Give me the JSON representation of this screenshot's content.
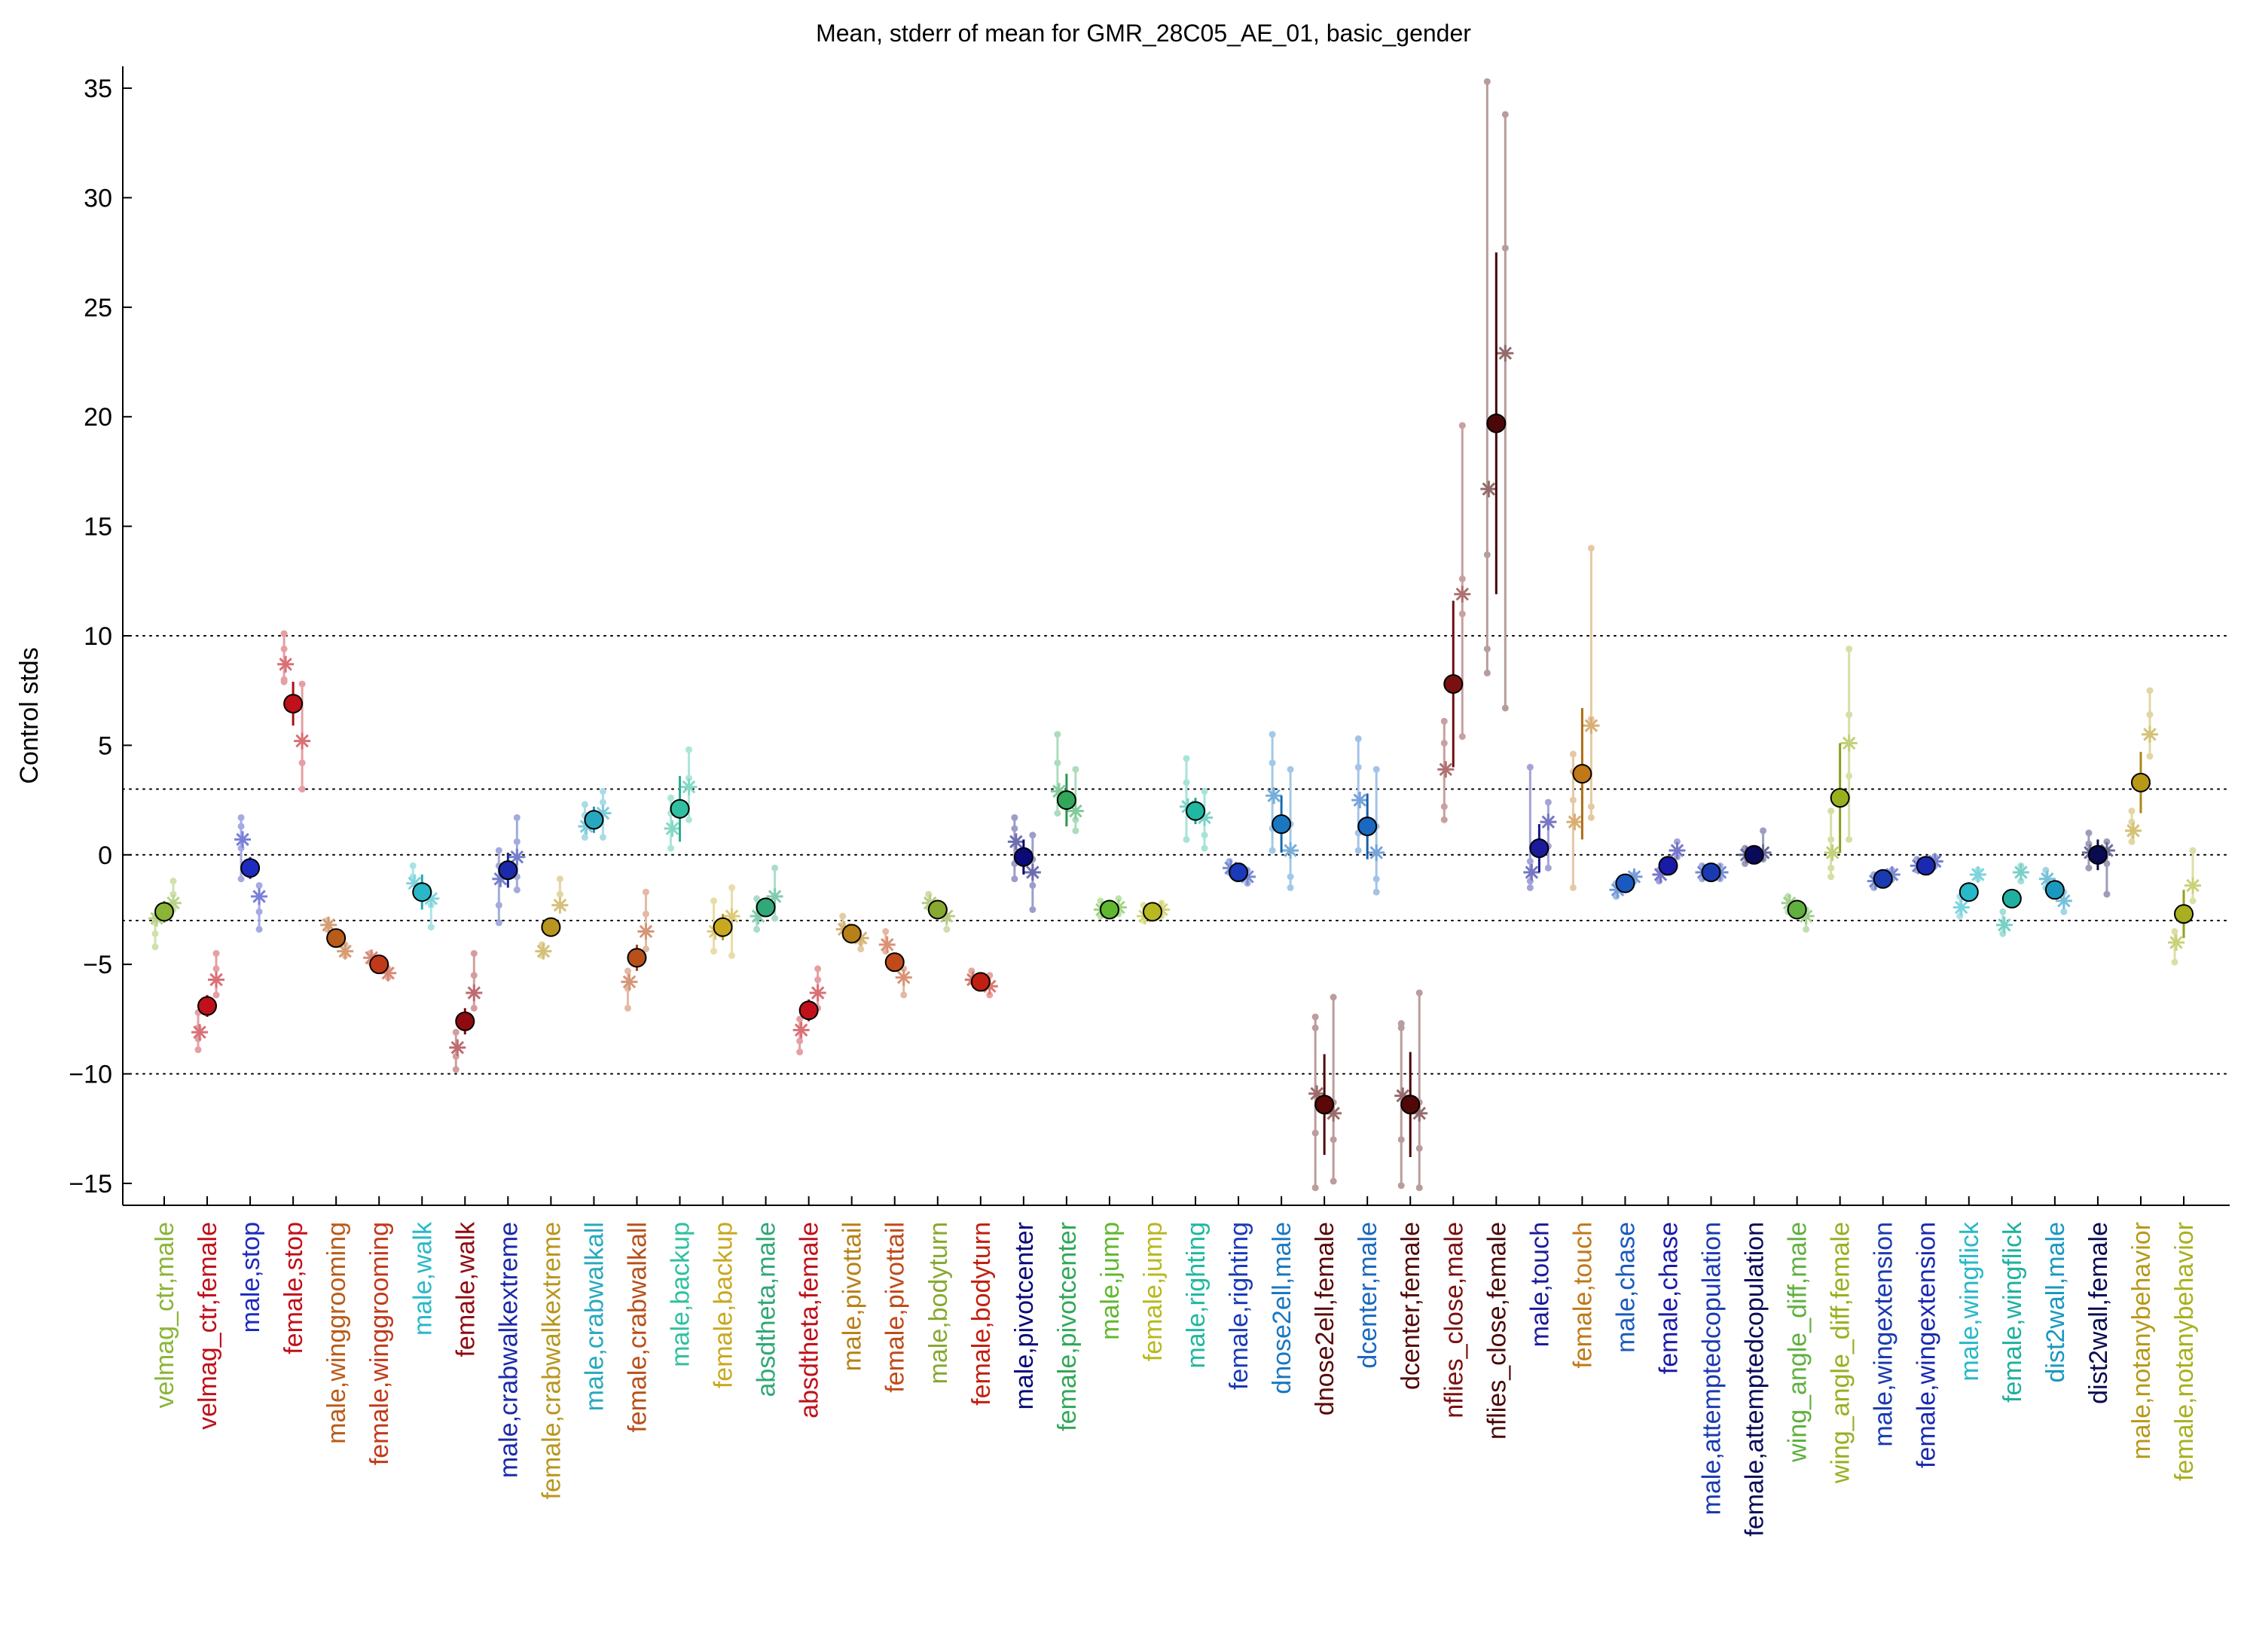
{
  "chart_data": {
    "type": "scatter",
    "title": "Mean, stderr of mean for GMR_28C05_AE_01, basic_gender",
    "ylabel": "Control stds",
    "xlabel": "",
    "ylim": [
      -16,
      36
    ],
    "yticks": [
      -15,
      -10,
      -5,
      0,
      5,
      10,
      15,
      20,
      25,
      30,
      35
    ],
    "reference_lines": [
      -10,
      -3,
      0,
      3,
      10
    ],
    "grid": false,
    "categories": [
      {
        "label": "velmag_ctr,male",
        "color": "#8ab537",
        "mean": -2.6,
        "stderr": 0.5,
        "stars": [
          -2.9,
          -2.2
        ],
        "dots": [
          -4.2,
          -3.6,
          -3.1,
          -2.8,
          -2.5,
          -1.8,
          -1.2
        ]
      },
      {
        "label": "velmag_ctr,female",
        "color": "#c0101a",
        "mean": -6.9,
        "stderr": 0.5,
        "stars": [
          -8.1,
          -5.7
        ],
        "dots": [
          -8.9,
          -8.4,
          -7.9,
          -7.2,
          -6.4,
          -5.2,
          -4.5
        ]
      },
      {
        "label": "male,stop",
        "color": "#1d2bbf",
        "mean": -0.6,
        "stderr": 0.5,
        "stars": [
          0.7,
          -1.9
        ],
        "dots": [
          1.7,
          1.3,
          0.3,
          -1.1,
          -1.4,
          -2.6,
          -3.4
        ]
      },
      {
        "label": "female,stop",
        "color": "#c0101a",
        "mean": 6.9,
        "stderr": 1.0,
        "stars": [
          8.7,
          5.2
        ],
        "dots": [
          10.1,
          9.4,
          8.0,
          7.9,
          7.8,
          4.2,
          3.0
        ]
      },
      {
        "label": "male,winggrooming",
        "color": "#b85c1a",
        "mean": -3.8,
        "stderr": 0.3,
        "stars": [
          -3.2,
          -4.4
        ],
        "dots": [
          -3.0,
          -3.4,
          -4.1,
          -4.6
        ]
      },
      {
        "label": "female,winggrooming",
        "color": "#c03a1a",
        "mean": -5.0,
        "stderr": 0.3,
        "stars": [
          -4.7,
          -5.4
        ],
        "dots": [
          -4.5,
          -4.9,
          -5.2,
          -5.6
        ]
      },
      {
        "label": "male,walk",
        "color": "#28b8c8",
        "mean": -1.7,
        "stderr": 0.8,
        "stars": [
          -1.3,
          -2.0
        ],
        "dots": [
          -0.5,
          -1.0,
          -2.3,
          -3.3
        ]
      },
      {
        "label": "female,walk",
        "color": "#900a10",
        "mean": -7.6,
        "stderr": 0.6,
        "stars": [
          -8.8,
          -6.3
        ],
        "dots": [
          -9.8,
          -9.2,
          -8.1,
          -7.0,
          -5.5,
          -4.5
        ]
      },
      {
        "label": "male,crabwalkextreme",
        "color": "#1a2aa8",
        "mean": -0.7,
        "stderr": 0.8,
        "stars": [
          -1.1,
          -0.1
        ],
        "dots": [
          0.2,
          -0.5,
          -2.3,
          -3.1,
          1.7,
          0.6,
          -1.0,
          -1.6
        ]
      },
      {
        "label": "female,crabwalkextreme",
        "color": "#b8961e",
        "mean": -3.3,
        "stderr": 0.3,
        "stars": [
          -4.4,
          -2.3
        ],
        "dots": [
          -4.6,
          -4.1,
          -1.8,
          -1.1
        ]
      },
      {
        "label": "male,crabwalkall",
        "color": "#28a8c0",
        "mean": 1.6,
        "stderr": 0.6,
        "stars": [
          1.3,
          1.9
        ],
        "dots": [
          2.3,
          1.8,
          0.8,
          2.9,
          2.4,
          0.8
        ]
      },
      {
        "label": "female,crabwalkall",
        "color": "#b8501a",
        "mean": -4.7,
        "stderr": 0.6,
        "stars": [
          -5.8,
          -3.5
        ],
        "dots": [
          -7.0,
          -6.1,
          -5.3,
          -4.3,
          -2.7,
          -1.7
        ]
      },
      {
        "label": "male,backup",
        "color": "#30c0a0",
        "mean": 2.1,
        "stderr": 1.5,
        "stars": [
          1.2,
          3.1
        ],
        "dots": [
          2.6,
          1.9,
          0.3,
          4.8,
          3.5,
          1.6
        ]
      },
      {
        "label": "female,backup",
        "color": "#c8a820",
        "mean": -3.3,
        "stderr": 0.6,
        "stars": [
          -3.5,
          -2.8
        ],
        "dots": [
          -2.1,
          -4.4,
          -1.5,
          -4.6
        ]
      },
      {
        "label": "absdtheta,male",
        "color": "#30a878",
        "mean": -2.4,
        "stderr": 0.4,
        "stars": [
          -2.8,
          -1.9
        ],
        "dots": [
          -2.0,
          -3.4,
          -0.6,
          -2.9
        ]
      },
      {
        "label": "absdtheta,female",
        "color": "#c0101a",
        "mean": -7.1,
        "stderr": 0.5,
        "stars": [
          -8.0,
          -6.3
        ],
        "dots": [
          -9.0,
          -8.5,
          -7.5,
          -7.0,
          -5.7,
          -5.2
        ]
      },
      {
        "label": "male,pivottail",
        "color": "#b88018",
        "mean": -3.6,
        "stderr": 0.3,
        "stars": [
          -3.4,
          -3.8
        ],
        "dots": [
          -2.8,
          -3.2,
          -4.0,
          -4.3
        ]
      },
      {
        "label": "female,pivottail",
        "color": "#c04a1a",
        "mean": -4.9,
        "stderr": 0.4,
        "stars": [
          -4.1,
          -5.6
        ],
        "dots": [
          -3.5,
          -4.4,
          -5.2,
          -6.4
        ]
      },
      {
        "label": "male,bodyturn",
        "color": "#88a830",
        "mean": -2.5,
        "stderr": 0.3,
        "stars": [
          -2.2,
          -2.8
        ],
        "dots": [
          -1.8,
          -2.4,
          -2.9,
          -3.4
        ]
      },
      {
        "label": "female,bodyturn",
        "color": "#c02010",
        "mean": -5.8,
        "stderr": 0.2,
        "stars": [
          -5.7,
          -6.0
        ],
        "dots": [
          -5.3,
          -5.8,
          -5.5,
          -6.4
        ]
      },
      {
        "label": "male,pivotcenter",
        "color": "#0a0a7a",
        "mean": -0.1,
        "stderr": 0.8,
        "stars": [
          0.6,
          -0.8
        ],
        "dots": [
          1.7,
          1.2,
          -0.4,
          -1.1,
          0.9,
          -0.2,
          -1.4,
          -2.5
        ]
      },
      {
        "label": "female,pivotcenter",
        "color": "#30a858",
        "mean": 2.5,
        "stderr": 1.2,
        "stars": [
          2.9,
          2.0
        ],
        "dots": [
          5.5,
          4.2,
          1.9,
          1.6,
          3.9,
          1.1
        ]
      },
      {
        "label": "male,jump",
        "color": "#60b830",
        "mean": -2.5,
        "stderr": 0.2,
        "stars": [
          -2.5,
          -2.4
        ],
        "dots": [
          -2.1,
          -2.8,
          -2.0,
          -2.7
        ]
      },
      {
        "label": "female,jump",
        "color": "#b8b820",
        "mean": -2.6,
        "stderr": 0.2,
        "stars": [
          -2.8,
          -2.5
        ],
        "dots": [
          -2.3,
          -3.0,
          -2.2,
          -2.8
        ]
      },
      {
        "label": "male,righting",
        "color": "#20b8a0",
        "mean": 2.0,
        "stderr": 0.6,
        "stars": [
          2.2,
          1.7
        ],
        "dots": [
          4.4,
          3.3,
          0.7,
          0.3,
          2.9,
          0.9
        ]
      },
      {
        "label": "female,righting",
        "color": "#1a3ab8",
        "mean": -0.8,
        "stderr": 0.2,
        "stars": [
          -0.6,
          -1.0
        ],
        "dots": [
          -0.3,
          -0.8,
          -0.7,
          -1.3
        ]
      },
      {
        "label": "dnose2ell,male",
        "color": "#1a78c0",
        "mean": 1.4,
        "stderr": 1.3,
        "stars": [
          2.7,
          0.2
        ],
        "dots": [
          5.5,
          4.2,
          1.2,
          0.2,
          3.9,
          1.4,
          -1.0,
          -1.5
        ]
      },
      {
        "label": "dnose2ell,female",
        "color": "#5a0808",
        "mean": -11.4,
        "stderr": 2.3,
        "stars": [
          -10.9,
          -11.8
        ],
        "dots": [
          -7.4,
          -7.9,
          -12.7,
          -15.2,
          -6.5,
          -11.3,
          -13.0,
          -14.9
        ]
      },
      {
        "label": "dcenter,male",
        "color": "#1a68c0",
        "mean": 1.3,
        "stderr": 1.5,
        "stars": [
          2.5,
          0.1
        ],
        "dots": [
          5.3,
          4.0,
          1.0,
          0.2,
          3.9,
          1.3,
          -1.1,
          -1.7
        ]
      },
      {
        "label": "dcenter,female",
        "color": "#500808",
        "mean": -11.4,
        "stderr": 2.4,
        "stars": [
          -11.0,
          -11.8
        ],
        "dots": [
          -7.7,
          -7.9,
          -13.0,
          -15.1,
          -6.3,
          -11.3,
          -13.4,
          -15.2
        ]
      },
      {
        "label": "nflies_close,male",
        "color": "#7a1010",
        "mean": 7.8,
        "stderr": 3.8,
        "stars": [
          3.9,
          11.9
        ],
        "dots": [
          6.1,
          5.1,
          2.2,
          1.6,
          19.6,
          12.6,
          11.0,
          5.4
        ]
      },
      {
        "label": "nflies_close,female",
        "color": "#4a0808",
        "mean": 19.7,
        "stderr": 7.8,
        "stars": [
          16.7,
          22.9
        ],
        "dots": [
          35.3,
          13.7,
          9.4,
          8.3,
          33.8,
          27.7,
          6.7
        ]
      },
      {
        "label": "male,touch",
        "color": "#1a1a9a",
        "mean": 0.3,
        "stderr": 1.1,
        "stars": [
          -0.8,
          1.5
        ],
        "dots": [
          -0.3,
          -1.2,
          -1.5,
          4.0,
          2.4,
          0.4,
          -0.6
        ]
      },
      {
        "label": "female,touch",
        "color": "#c07818",
        "mean": 3.7,
        "stderr": 3.0,
        "stars": [
          1.5,
          5.9
        ],
        "dots": [
          4.6,
          3.8,
          2.5,
          -1.5,
          14.0,
          6.2,
          2.2,
          1.7
        ]
      },
      {
        "label": "male,chase",
        "color": "#1a5ac0",
        "mean": -1.3,
        "stderr": 0.3,
        "stars": [
          -1.6,
          -1.0
        ],
        "dots": [
          -1.3,
          -1.9,
          -0.9,
          -1.2
        ]
      },
      {
        "label": "female,chase",
        "color": "#1a1aa8",
        "mean": -0.5,
        "stderr": 0.3,
        "stars": [
          -0.9,
          0.2
        ],
        "dots": [
          -0.7,
          -1.2,
          0.6,
          -0.1
        ]
      },
      {
        "label": "male,attemptedcopulation",
        "color": "#1a3ab0",
        "mean": -0.8,
        "stderr": 0.2,
        "stars": [
          -0.8,
          -0.8
        ],
        "dots": [
          -0.5,
          -1.1,
          -0.5,
          -1.1
        ]
      },
      {
        "label": "female,attemptedcopulation",
        "color": "#0a0a5a",
        "mean": 0.0,
        "stderr": 0.2,
        "stars": [
          0.0,
          0.1
        ],
        "dots": [
          0.3,
          -0.4,
          1.1,
          -0.2
        ]
      },
      {
        "label": "wing_angle_diff,male",
        "color": "#60b040",
        "mean": -2.5,
        "stderr": 0.2,
        "stars": [
          -2.2,
          -2.8
        ],
        "dots": [
          -1.9,
          -2.6,
          -2.5,
          -3.4
        ]
      },
      {
        "label": "wing_angle_diff,female",
        "color": "#98b020",
        "mean": 2.6,
        "stderr": 2.5,
        "stars": [
          0.1,
          5.1
        ],
        "dots": [
          2.0,
          0.7,
          -0.6,
          -1.0,
          9.4,
          6.4,
          3.6,
          0.7
        ]
      },
      {
        "label": "male,wingextension",
        "color": "#1a3ab0",
        "mean": -1.1,
        "stderr": 0.3,
        "stars": [
          -1.2,
          -0.9
        ],
        "dots": [
          -0.9,
          -1.5,
          -0.7,
          -1.1
        ]
      },
      {
        "label": "female,wingextension",
        "color": "#1a2ab0",
        "mean": -0.5,
        "stderr": 0.2,
        "stars": [
          -0.5,
          -0.3
        ],
        "dots": [
          -0.2,
          -0.7,
          -0.1,
          -0.5
        ]
      },
      {
        "label": "male,wingflick",
        "color": "#28b8c8",
        "mean": -1.7,
        "stderr": 0.3,
        "stars": [
          -2.4,
          -0.9
        ],
        "dots": [
          -1.9,
          -2.8,
          -0.7,
          -1.1
        ]
      },
      {
        "label": "female,wingflick",
        "color": "#20b0a0",
        "mean": -2.0,
        "stderr": 0.3,
        "stars": [
          -3.2,
          -0.8
        ],
        "dots": [
          -2.6,
          -3.6,
          -0.5,
          -1.2
        ]
      },
      {
        "label": "dist2wall,male",
        "color": "#1a98c0",
        "mean": -1.6,
        "stderr": 0.3,
        "stars": [
          -1.1,
          -2.1
        ],
        "dots": [
          -0.7,
          -1.5,
          -1.7,
          -2.6
        ]
      },
      {
        "label": "dist2wall,female",
        "color": "#0a0a50",
        "mean": 0.0,
        "stderr": 0.7,
        "stars": [
          0.1,
          0.2
        ],
        "dots": [
          1.0,
          0.5,
          -0.6,
          -1.8,
          0.6,
          -0.4
        ]
      },
      {
        "label": "male,notanybehavior",
        "color": "#b89818",
        "mean": 3.3,
        "stderr": 1.4,
        "stars": [
          1.1,
          5.5
        ],
        "dots": [
          2.0,
          1.5,
          0.6,
          7.5,
          6.4,
          4.5
        ]
      },
      {
        "label": "female,notanybehavior",
        "color": "#a8b020",
        "mean": -2.7,
        "stderr": 1.1,
        "stars": [
          -4.0,
          -1.4
        ],
        "dots": [
          -3.5,
          -4.9,
          0.2,
          -2.1
        ]
      }
    ]
  }
}
